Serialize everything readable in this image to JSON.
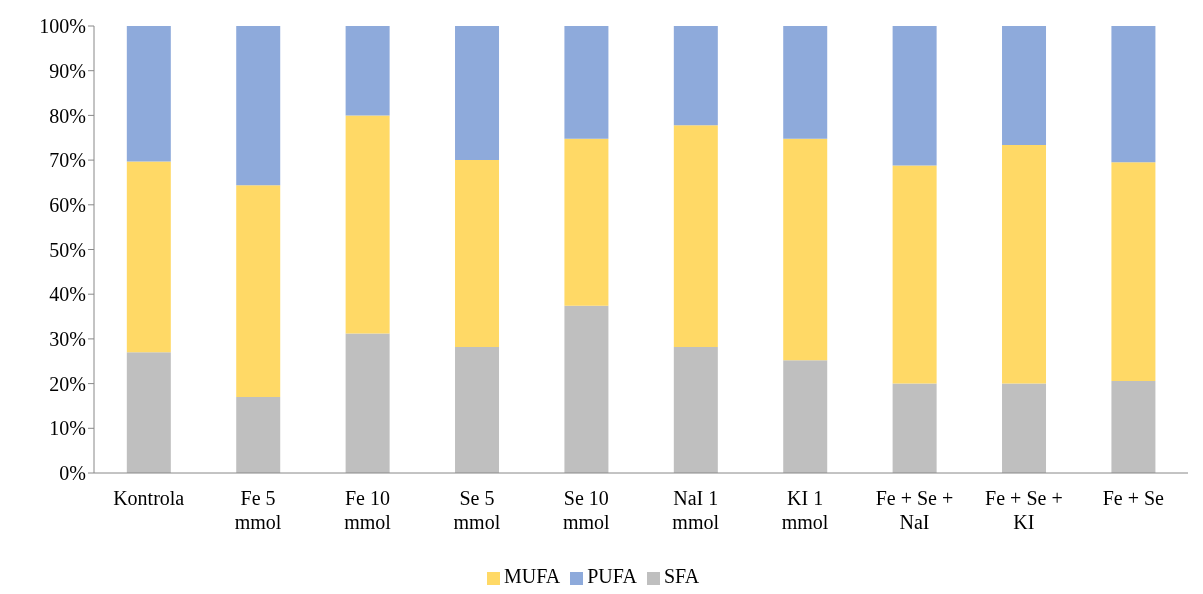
{
  "chart_data": {
    "type": "bar",
    "stacked": true,
    "categories": [
      "Kontrola",
      "Fe 5\nmmol",
      "Fe 10\nmmol",
      "Se 5\nmmol",
      "Se 10\nmmol",
      "NaI 1\nmmol",
      "KI 1\nmmol",
      "Fe + Se +\nNaI",
      "Fe + Se +\nKI",
      "Fe + Se"
    ],
    "series": [
      {
        "name": "SFA",
        "color": "#bfbfbf",
        "values": [
          27,
          17,
          31.2,
          28.2,
          37.4,
          28.2,
          25.2,
          20,
          20,
          20.6
        ]
      },
      {
        "name": "MUFA",
        "color": "#ffd966",
        "values": [
          42.7,
          47.4,
          48.8,
          41.8,
          37.4,
          49.6,
          49.6,
          48.8,
          53.4,
          48.9
        ]
      },
      {
        "name": "PUFA",
        "color": "#8eaadb",
        "values": [
          30.3,
          35.6,
          20,
          30,
          25.2,
          22.2,
          25.2,
          31.2,
          26.6,
          30.5
        ]
      }
    ],
    "ylim": [
      0,
      100
    ],
    "yticks": [
      {
        "value": 0,
        "label": "0%"
      },
      {
        "value": 10,
        "label": "10%"
      },
      {
        "value": 20,
        "label": "20%"
      },
      {
        "value": 30,
        "label": "30%"
      },
      {
        "value": 40,
        "label": "40%"
      },
      {
        "value": 50,
        "label": "50%"
      },
      {
        "value": 60,
        "label": "60%"
      },
      {
        "value": 70,
        "label": "70%"
      },
      {
        "value": 80,
        "label": "80%"
      },
      {
        "value": 90,
        "label": "90%"
      },
      {
        "value": 100,
        "label": "100%"
      }
    ],
    "grid": false,
    "legend": "bottom"
  }
}
